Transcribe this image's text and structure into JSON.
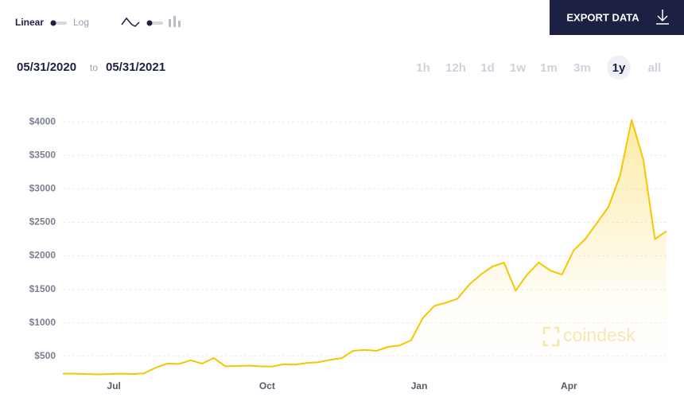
{
  "toolbar": {
    "scale_options": [
      "Linear",
      "Log"
    ],
    "export_label": "EXPORT DATA",
    "date_from": "05/31/2020",
    "date_separator": "to",
    "date_to": "05/31/2021",
    "ranges": [
      "1h",
      "12h",
      "1d",
      "1w",
      "1m",
      "3m",
      "1y",
      "all"
    ],
    "selected_range": "1y"
  },
  "chart_data": {
    "type": "area",
    "watermark": "coindesk",
    "color": "#f7c600",
    "values": [
      240,
      240,
      235,
      230,
      235,
      240,
      235,
      245,
      330,
      390,
      385,
      440,
      390,
      475,
      350,
      355,
      360,
      350,
      345,
      380,
      375,
      400,
      410,
      445,
      470,
      580,
      595,
      580,
      640,
      660,
      740,
      1070,
      1250,
      1300,
      1360,
      1570,
      1720,
      1840,
      1900,
      1480,
      1720,
      1900,
      1780,
      1720,
      2080,
      2250,
      2490,
      2730,
      3200,
      4030,
      3440,
      2250,
      2370
    ],
    "xlim": [
      0,
      52
    ],
    "xticks": [
      {
        "value": 4.4,
        "label": "Jul"
      },
      {
        "value": 17.6,
        "label": "Oct"
      },
      {
        "value": 30.7,
        "label": "Jan"
      },
      {
        "value": 43.6,
        "label": "Apr"
      }
    ],
    "ylim": [
      200,
      4300
    ],
    "yticks": [
      {
        "value": 500,
        "label": "$500"
      },
      {
        "value": 1000,
        "label": "$1000"
      },
      {
        "value": 1500,
        "label": "$1500"
      },
      {
        "value": 2000,
        "label": "$2000"
      },
      {
        "value": 2500,
        "label": "$2500"
      },
      {
        "value": 3000,
        "label": "$3000"
      },
      {
        "value": 3500,
        "label": "$3500"
      },
      {
        "value": 4000,
        "label": "$4000"
      }
    ],
    "grid": true
  }
}
